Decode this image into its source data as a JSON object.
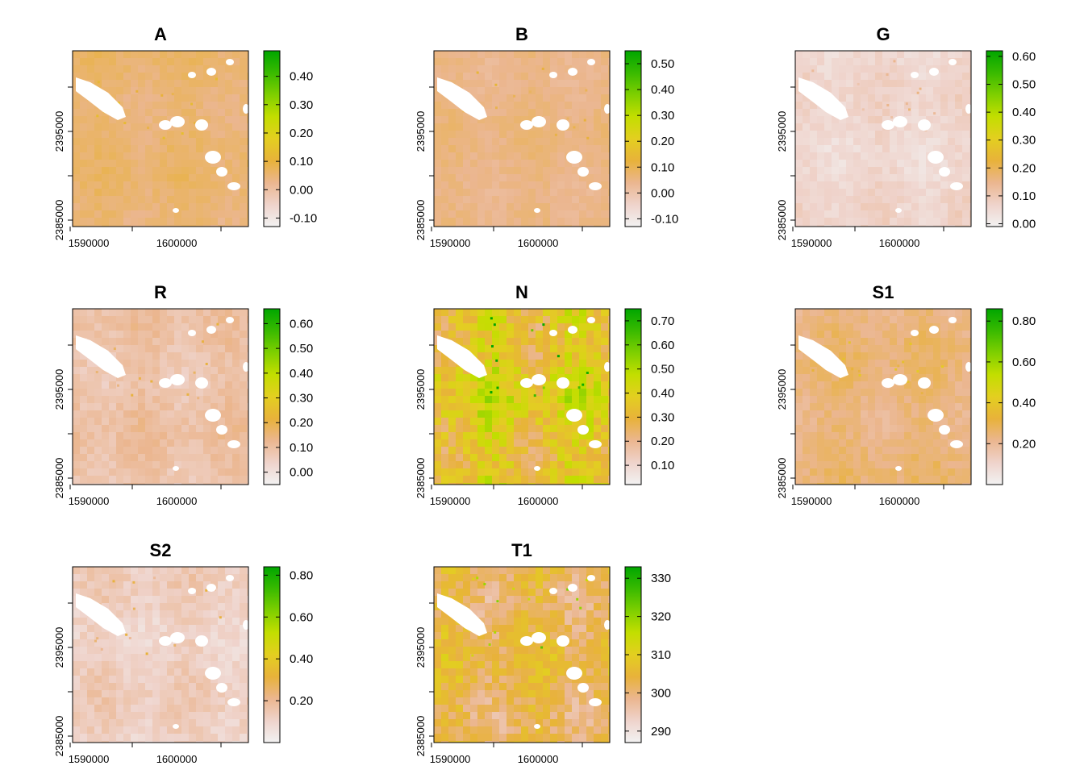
{
  "figure": {
    "description_type": "grid of raster maps with continuous color legends",
    "layout": "3 columns x 3 rows, 8 panels"
  },
  "colors": {
    "ramp": [
      "#f2f2f2",
      "#efd3cb",
      "#ebb68f",
      "#e8b23a",
      "#e3cf20",
      "#c3de00",
      "#7fcf00",
      "#39ba00",
      "#00a600"
    ],
    "nodata": "#ffffff",
    "axis": "#000000"
  },
  "chart_data": [
    {
      "type": "heatmap",
      "title": "A",
      "x_ticks": [
        "1590000",
        "1600000"
      ],
      "y_ticks": [
        "2395000",
        "2385000"
      ],
      "legend_ticks": [
        "0.40",
        "0.30",
        "0.20",
        "0.10",
        "0.00",
        "-0.10"
      ],
      "legend_range": [
        -0.13,
        0.49
      ],
      "base_value": 0.05,
      "variation": 0.015,
      "grid": false
    },
    {
      "type": "heatmap",
      "title": "B",
      "x_ticks": [
        "1590000",
        "1600000"
      ],
      "y_ticks": [
        "2395000",
        "2385000"
      ],
      "legend_ticks": [
        "0.50",
        "0.40",
        "0.30",
        "0.20",
        "0.10",
        "0.00",
        "-0.10"
      ],
      "legend_range": [
        -0.13,
        0.55
      ],
      "base_value": 0.05,
      "variation": 0.015,
      "grid": false
    },
    {
      "type": "heatmap",
      "title": "G",
      "x_ticks": [
        "1590000",
        "1600000"
      ],
      "y_ticks": [
        "2395000",
        "2385000"
      ],
      "legend_ticks": [
        "0.60",
        "0.50",
        "0.40",
        "0.30",
        "0.20",
        "0.10",
        "0.00"
      ],
      "legend_range": [
        -0.01,
        0.62
      ],
      "base_value": 0.06,
      "variation": 0.02,
      "grid": false
    },
    {
      "type": "heatmap",
      "title": "R",
      "x_ticks": [
        "1590000",
        "1600000"
      ],
      "y_ticks": [
        "2395000",
        "2385000"
      ],
      "legend_ticks": [
        "0.60",
        "0.50",
        "0.40",
        "0.30",
        "0.20",
        "0.10",
        "0.00"
      ],
      "legend_range": [
        -0.05,
        0.66
      ],
      "base_value": 0.09,
      "variation": 0.025,
      "grid": false
    },
    {
      "type": "heatmap",
      "title": "N",
      "x_ticks": [
        "1590000",
        "1600000"
      ],
      "y_ticks": [
        "2395000",
        "2385000"
      ],
      "legend_ticks": [
        "0.70",
        "0.60",
        "0.50",
        "0.40",
        "0.30",
        "0.20",
        "0.10"
      ],
      "legend_range": [
        0.02,
        0.75
      ],
      "base_value": 0.37,
      "variation": 0.09,
      "grid": false
    },
    {
      "type": "heatmap",
      "title": "S1",
      "x_ticks": [
        "1590000",
        "1600000"
      ],
      "y_ticks": [
        "2395000",
        "2385000"
      ],
      "legend_ticks": [
        "0.80",
        "0.60",
        "0.40",
        "0.20"
      ],
      "legend_range": [
        0.0,
        0.86
      ],
      "base_value": 0.24,
      "variation": 0.03,
      "grid": false
    },
    {
      "type": "heatmap",
      "title": "S2",
      "x_ticks": [
        "1590000",
        "1600000"
      ],
      "y_ticks": [
        "2395000",
        "2385000"
      ],
      "legend_ticks": [
        "0.80",
        "0.60",
        "0.40",
        "0.20"
      ],
      "legend_range": [
        0.0,
        0.84
      ],
      "base_value": 0.12,
      "variation": 0.035,
      "grid": false
    },
    {
      "type": "heatmap",
      "title": "T1",
      "x_ticks": [
        "1590000",
        "1600000"
      ],
      "y_ticks": [
        "2395000",
        "2385000"
      ],
      "legend_ticks": [
        "330",
        "320",
        "310",
        "300",
        "290"
      ],
      "legend_range": [
        287,
        333
      ],
      "base_value": 303,
      "variation": 4,
      "grid": false
    }
  ]
}
